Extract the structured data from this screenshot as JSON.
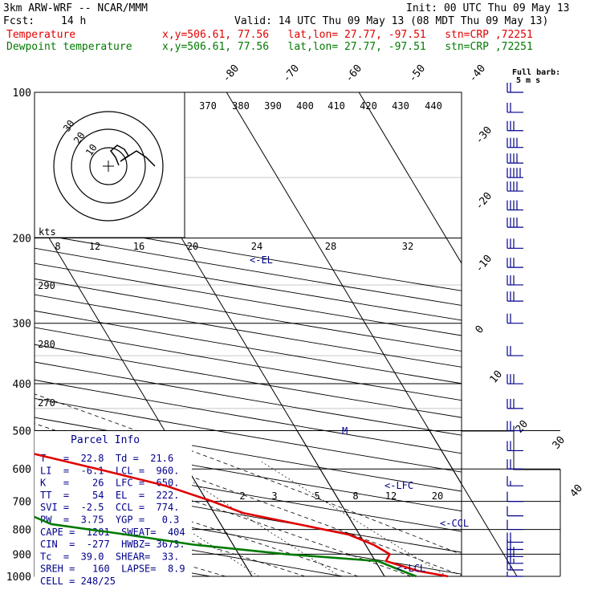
{
  "header": {
    "model": "3km ARW-WRF -- NCAR/MMM",
    "init": "Init: 00 UTC Thu 09 May 13",
    "fcst_label": "Fcst:",
    "fcst_value": "14 h",
    "valid": "Valid: 14 UTC Thu 09 May 13 (08 MDT Thu 09 May 13)",
    "temp_label": "Temperature",
    "temp_info": "x,y=506.61, 77.56   lat,lon= 27.77, -97.51   stn=CRP ,72251",
    "dew_label": "Dewpoint temperature",
    "dew_info": "x,y=506.61, 77.56   lat,lon= 27.77, -97.51   stn=CRP ,72251"
  },
  "colors": {
    "temperature": "#e00000",
    "dewpoint": "#007a00",
    "annotation": "#00008b",
    "grid": "#000000",
    "dashed": "#000000"
  },
  "labels": {
    "full_barb": "Full barb:",
    "full_barb_unit": "5 m s",
    "kts": "kts",
    "el_marker": "<-EL",
    "lfc_marker": "<-LFC",
    "ccl_marker": "<-CCL",
    "lcl_marker": "<-LCL",
    "m_marker": "M"
  },
  "parcel_info": {
    "title": "Parcel Info",
    "rows": [
      "T   =  22.8  Td =  21.6",
      "LI  =  -6.1  LCL =  960.",
      "K   =    26  LFC =  650.",
      "TT  =    54  EL  =  222.",
      "SVI =  -2.5  CCL =  774.",
      "PW  =  3.75  YGP =   0.3",
      "CAPE =  1201  SWEAT=  404",
      "CIN  =  -277  HWBZ= 3673.",
      "Tc  =  39.0  SHEAR=  33.",
      "SREH =   160  LAPSE=  8.9",
      "CELL = 248/25"
    ]
  },
  "hodograph": {
    "ring_labels": [
      "10",
      "20",
      "30"
    ]
  },
  "chart_data": {
    "type": "line",
    "title": "",
    "ylabel": "",
    "xlabel": "",
    "y_axis": "pressure (hPa), log scale",
    "pressure_ticks": [
      100,
      200,
      300,
      400,
      500,
      600,
      700,
      800,
      900,
      1000
    ],
    "isotherm_labels_top": [
      "-80",
      "-70",
      "-60",
      "-50",
      "-40"
    ],
    "isotherm_labels_right": [
      "-30",
      "-20",
      "-10",
      "0",
      "10",
      "20",
      "30",
      "40"
    ],
    "theta_labels_top": [
      "370",
      "380",
      "390",
      "400",
      "410",
      "420",
      "430",
      "440"
    ],
    "theta_labels_left": [
      "290",
      "280",
      "270"
    ],
    "mixing_ratio_labels_top": [
      "8",
      "12",
      "16",
      "20",
      "24",
      "28",
      "32"
    ],
    "mixing_ratio_labels_bottom": [
      "2",
      "3",
      "5",
      "8",
      "12",
      "20"
    ],
    "series": [
      {
        "name": "Temperature",
        "points": [
          {
            "p": 1000,
            "t": 24.8
          },
          {
            "p": 975,
            "t": 22.8
          },
          {
            "p": 930,
            "t": 20.8
          },
          {
            "p": 900,
            "t": 21.4
          },
          {
            "p": 860,
            "t": 20.6
          },
          {
            "p": 820,
            "t": 19.2
          },
          {
            "p": 780,
            "t": 15.8
          },
          {
            "p": 740,
            "t": 12.2
          },
          {
            "p": 700,
            "t": 10.4
          },
          {
            "p": 650,
            "t": 7.6
          },
          {
            "p": 600,
            "t": 3.2
          },
          {
            "p": 550,
            "t": -1.8
          },
          {
            "p": 500,
            "t": -6.2
          },
          {
            "p": 450,
            "t": -10.4
          },
          {
            "p": 400,
            "t": -15.8
          },
          {
            "p": 350,
            "t": -22.6
          },
          {
            "p": 300,
            "t": -31.0
          },
          {
            "p": 250,
            "t": -41.4
          },
          {
            "p": 200,
            "t": -53.8
          },
          {
            "p": 175,
            "t": -61.0
          },
          {
            "p": 150,
            "t": -66.2
          },
          {
            "p": 125,
            "t": -68.4
          },
          {
            "p": 110,
            "t": -67.4
          },
          {
            "p": 100,
            "t": -66.4
          }
        ]
      },
      {
        "name": "Dewpoint temperature",
        "points": [
          {
            "p": 1000,
            "t": 22.4
          },
          {
            "p": 975,
            "t": 21.6
          },
          {
            "p": 930,
            "t": 20.2
          },
          {
            "p": 900,
            "t": 13.6
          },
          {
            "p": 860,
            "t": 7.0
          },
          {
            "p": 820,
            "t": 2.4
          },
          {
            "p": 780,
            "t": -2.8
          },
          {
            "p": 720,
            "t": -5.0
          },
          {
            "p": 680,
            "t": -8.8
          },
          {
            "p": 630,
            "t": -14.6
          },
          {
            "p": 560,
            "t": -17.8
          },
          {
            "p": 500,
            "t": -20.4
          },
          {
            "p": 450,
            "t": -22.6
          },
          {
            "p": 400,
            "t": -27.4
          },
          {
            "p": 350,
            "t": -30.6
          },
          {
            "p": 300,
            "t": -40.2
          },
          {
            "p": 250,
            "t": -55.4
          },
          {
            "p": 200,
            "t": -68.0
          },
          {
            "p": 175,
            "t": -75.4
          },
          {
            "p": 150,
            "t": -80.2
          },
          {
            "p": 125,
            "t": -81.4
          },
          {
            "p": 110,
            "t": -80.6
          },
          {
            "p": 100,
            "t": -79.8
          }
        ]
      }
    ],
    "winds": [
      {
        "p": 1000,
        "speed": 3
      },
      {
        "p": 970,
        "speed": 8
      },
      {
        "p": 940,
        "speed": 13
      },
      {
        "p": 910,
        "speed": 15
      },
      {
        "p": 880,
        "speed": 12
      },
      {
        "p": 850,
        "speed": 10
      },
      {
        "p": 800,
        "speed": 7
      },
      {
        "p": 750,
        "speed": 5
      },
      {
        "p": 700,
        "speed": 5
      },
      {
        "p": 650,
        "speed": 8
      },
      {
        "p": 600,
        "speed": 10
      },
      {
        "p": 550,
        "speed": 12
      },
      {
        "p": 500,
        "speed": 14
      },
      {
        "p": 450,
        "speed": 15
      },
      {
        "p": 400,
        "speed": 15
      },
      {
        "p": 350,
        "speed": 10
      },
      {
        "p": 300,
        "speed": 10
      },
      {
        "p": 270,
        "speed": 15
      },
      {
        "p": 250,
        "speed": 15
      },
      {
        "p": 230,
        "speed": 15
      },
      {
        "p": 210,
        "speed": 15
      },
      {
        "p": 190,
        "speed": 20
      },
      {
        "p": 175,
        "speed": 20
      },
      {
        "p": 160,
        "speed": 20
      },
      {
        "p": 150,
        "speed": 25
      },
      {
        "p": 140,
        "speed": 20
      },
      {
        "p": 130,
        "speed": 20
      },
      {
        "p": 120,
        "speed": 15
      },
      {
        "p": 110,
        "speed": 10
      },
      {
        "p": 100,
        "speed": 10
      }
    ],
    "legend": "top-left"
  }
}
